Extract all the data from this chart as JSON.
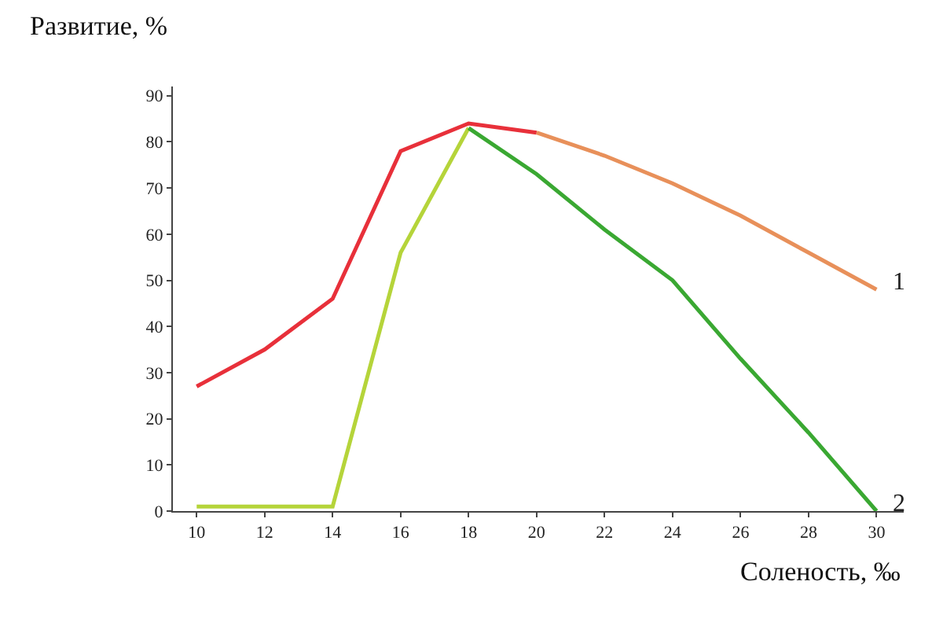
{
  "chart_data": {
    "type": "line",
    "xlabel": "Соленость, ‰",
    "ylabel": "Развитие, %",
    "series": [
      {
        "color": "#e8303a",
        "x": [
          10,
          12,
          14,
          16,
          18,
          20
        ],
        "values": [
          27,
          35,
          46,
          78,
          84,
          82
        ]
      },
      {
        "name": "1",
        "color": "#e8905a",
        "x": [
          20,
          22,
          24,
          26,
          28,
          30
        ],
        "values": [
          82,
          77,
          71,
          64,
          56,
          48
        ]
      },
      {
        "color": "#b5d43a",
        "x": [
          10,
          12,
          14,
          16,
          18
        ],
        "values": [
          1,
          1,
          1,
          56,
          83
        ]
      },
      {
        "name": "2",
        "color": "#3aa832",
        "x": [
          18,
          20,
          22,
          24,
          26,
          28,
          30
        ],
        "values": [
          83,
          73,
          61,
          50,
          33,
          17,
          0
        ]
      }
    ],
    "xlim": [
      9.3,
      30.8
    ],
    "ylim": [
      0,
      92
    ],
    "xticks": [
      10,
      12,
      14,
      16,
      18,
      20,
      22,
      24,
      26,
      28,
      30
    ],
    "yticks": [
      0,
      10,
      20,
      30,
      40,
      50,
      60,
      70,
      80,
      90
    ],
    "legend": false,
    "marker": "none",
    "line_style": "solid"
  }
}
